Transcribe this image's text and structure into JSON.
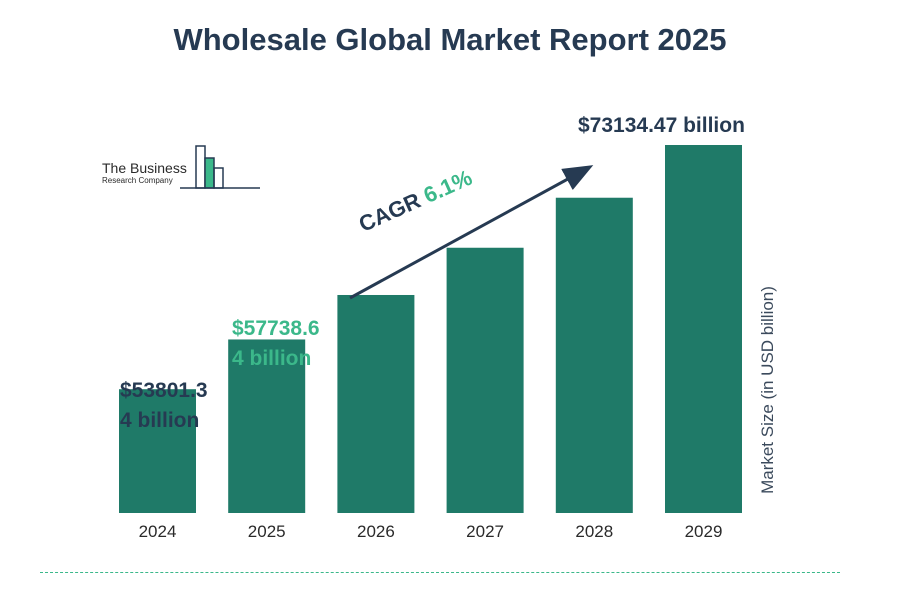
{
  "title": "Wholesale Global Market Report 2025",
  "logo": {
    "line1": "The Business",
    "line2": "Research Company"
  },
  "annotations": {
    "label_2024": [
      "$53801.3",
      "4 billion"
    ],
    "label_2025": [
      "$57738.6",
      "4 billion"
    ],
    "label_2029": "$73134.47 billion",
    "cagr_prefix": "CAGR ",
    "cagr_value": "6.1%"
  },
  "colors": {
    "bar": "#1f7a68",
    "accent": "#3bb88a",
    "dark": "#263a52"
  },
  "chart_data": {
    "type": "bar",
    "title": "Wholesale Global Market Report 2025",
    "categories": [
      "2024",
      "2025",
      "2026",
      "2027",
      "2028",
      "2029"
    ],
    "values": [
      53801.34,
      57738.64,
      61260,
      65000,
      68960,
      73134.47
    ],
    "ylabel": "Market Size (in USD billion)",
    "xlabel": "",
    "cagr": "6.1%",
    "ylim": [
      44000,
      75000
    ],
    "grid": false,
    "legend": "none"
  }
}
